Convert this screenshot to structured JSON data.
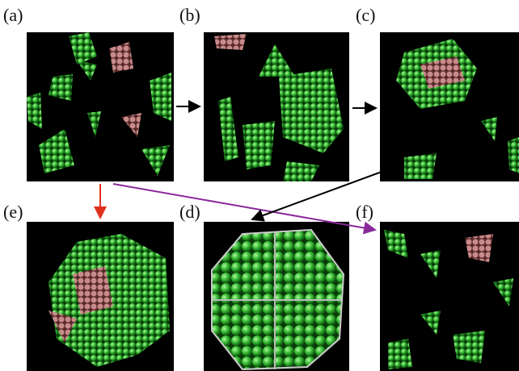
{
  "panels": [
    {
      "label": "(a)"
    },
    {
      "label": "(b)"
    },
    {
      "label": "(c)"
    },
    {
      "label": "(e)"
    },
    {
      "label": "(d)"
    },
    {
      "label": "(f)"
    }
  ]
}
